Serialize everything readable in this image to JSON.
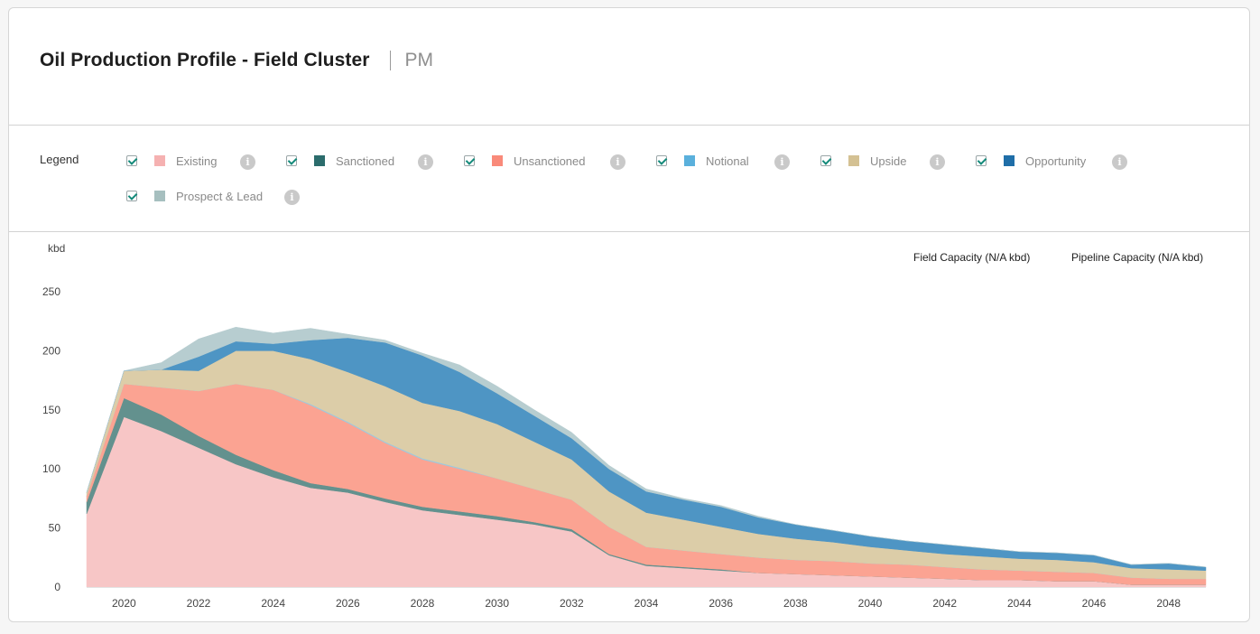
{
  "header": {
    "title": "Oil Production Profile - Field Cluster",
    "subtitle": "PM"
  },
  "legend": {
    "label": "Legend",
    "items": [
      {
        "label": "Existing",
        "color": "#f5b1b1",
        "checked": true
      },
      {
        "label": "Sanctioned",
        "color": "#2b6c6c",
        "checked": true
      },
      {
        "label": "Unsanctioned",
        "color": "#f98a7a",
        "checked": true
      },
      {
        "label": "Notional",
        "color": "#5ab0dc",
        "checked": true
      },
      {
        "label": "Upside",
        "color": "#d4c193",
        "checked": true
      },
      {
        "label": "Opportunity",
        "color": "#1f6ea8",
        "checked": true
      },
      {
        "label": "Prospect & Lead",
        "color": "#a6bfbf",
        "checked": true
      }
    ],
    "info_icon": "info-icon"
  },
  "capacity": {
    "field": "Field Capacity (N/A kbd)",
    "pipeline": "Pipeline Capacity (N/A kbd)"
  },
  "chart_data": {
    "type": "area",
    "stacked": true,
    "ylabel": "kbd",
    "ylim": [
      0,
      250
    ],
    "yticks": [
      0,
      50,
      100,
      150,
      200,
      250
    ],
    "xticks": [
      2020,
      2022,
      2024,
      2026,
      2028,
      2030,
      2032,
      2034,
      2036,
      2038,
      2040,
      2042,
      2044,
      2046,
      2048
    ],
    "x": [
      2019,
      2020,
      2021,
      2022,
      2023,
      2024,
      2025,
      2026,
      2027,
      2028,
      2029,
      2030,
      2031,
      2032,
      2033,
      2034,
      2035,
      2036,
      2037,
      2038,
      2039,
      2040,
      2041,
      2042,
      2043,
      2044,
      2045,
      2046,
      2047,
      2048,
      2049
    ],
    "series": [
      {
        "name": "Existing",
        "color": "#f7c6c6",
        "values": [
          62,
          144,
          132,
          118,
          104,
          93,
          84,
          80,
          72,
          65,
          61,
          57,
          53,
          47,
          27,
          18,
          16,
          14,
          12,
          11,
          10,
          9,
          8,
          7,
          6,
          6,
          5,
          5,
          2,
          2,
          2
        ]
      },
      {
        "name": "Sanctioned",
        "color": "#63918e",
        "values": [
          10,
          16,
          14,
          10,
          8,
          6,
          4,
          3,
          3,
          3,
          3,
          3,
          2,
          2,
          1,
          1,
          1,
          1,
          0,
          0,
          0,
          0,
          0,
          0,
          0,
          0,
          0,
          0,
          0,
          0,
          0
        ]
      },
      {
        "name": "Unsanctioned",
        "color": "#fba392",
        "values": [
          5,
          12,
          23,
          38,
          60,
          68,
          66,
          56,
          47,
          40,
          36,
          32,
          28,
          25,
          23,
          15,
          14,
          13,
          13,
          12,
          12,
          11,
          11,
          10,
          9,
          8,
          8,
          7,
          6,
          5,
          5
        ]
      },
      {
        "name": "Notional",
        "color": "#9fc8dc",
        "values": [
          0,
          0,
          0,
          0,
          0,
          0,
          1,
          1,
          1,
          1,
          1,
          0,
          0,
          0,
          0,
          0,
          0,
          0,
          0,
          0,
          0,
          0,
          0,
          0,
          0,
          0,
          0,
          0,
          0,
          0,
          0
        ]
      },
      {
        "name": "Upside",
        "color": "#dccda8",
        "values": [
          3,
          11,
          15,
          17,
          28,
          33,
          38,
          42,
          47,
          47,
          48,
          46,
          40,
          34,
          30,
          29,
          26,
          23,
          20,
          18,
          16,
          14,
          12,
          11,
          11,
          10,
          10,
          9,
          8,
          8,
          7
        ]
      },
      {
        "name": "Opportunity",
        "color": "#4e95c4",
        "values": [
          0,
          0,
          0,
          12,
          8,
          6,
          16,
          29,
          37,
          40,
          33,
          26,
          22,
          18,
          19,
          18,
          17,
          17,
          14,
          12,
          10,
          9,
          8,
          8,
          7,
          6,
          6,
          6,
          3,
          5,
          3
        ]
      },
      {
        "name": "Prospect & Lead",
        "color": "#b7cdd0",
        "values": [
          0,
          0,
          6,
          15,
          12,
          9,
          10,
          3,
          2,
          2,
          6,
          6,
          5,
          5,
          3,
          2,
          1,
          1,
          1,
          0,
          0,
          0,
          0,
          0,
          0,
          0,
          0,
          0,
          0,
          0,
          0
        ]
      }
    ]
  }
}
